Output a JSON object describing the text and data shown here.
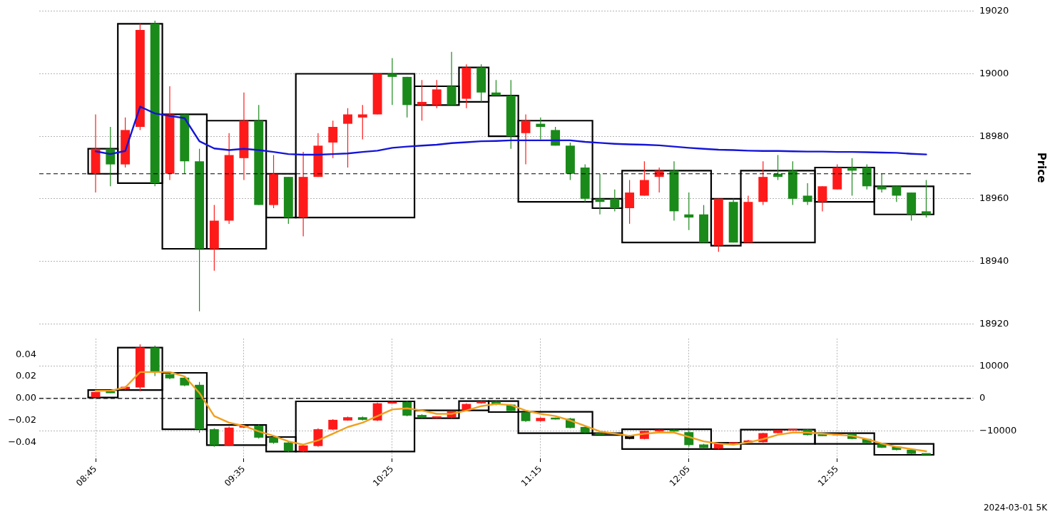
{
  "chart_data": [
    {
      "type": "candlestick",
      "ylabel": "Price",
      "x": [
        "2024-03-01T08:45",
        "2024-03-01T08:50",
        "2024-03-01T08:55",
        "2024-03-01T09:00",
        "2024-03-01T09:05",
        "2024-03-01T09:10",
        "2024-03-01T09:15",
        "2024-03-01T09:20",
        "2024-03-01T09:25",
        "2024-03-01T09:30",
        "2024-03-01T09:35",
        "2024-03-01T09:40",
        "2024-03-01T09:45",
        "2024-03-01T09:50",
        "2024-03-01T09:55",
        "2024-03-01T10:00",
        "2024-03-01T10:05",
        "2024-03-01T10:10",
        "2024-03-01T10:15",
        "2024-03-01T10:20",
        "2024-03-01T10:25",
        "2024-03-01T10:30",
        "2024-03-01T10:35",
        "2024-03-01T10:40",
        "2024-03-01T10:45",
        "2024-03-01T10:50",
        "2024-03-01T10:55",
        "2024-03-01T11:00",
        "2024-03-01T11:05",
        "2024-03-01T11:10",
        "2024-03-01T11:15",
        "2024-03-01T11:20",
        "2024-03-01T11:25",
        "2024-03-01T11:30",
        "2024-03-01T11:35",
        "2024-03-01T11:40",
        "2024-03-01T11:45",
        "2024-03-01T11:50",
        "2024-03-01T11:55",
        "2024-03-01T12:00",
        "2024-03-01T12:05",
        "2024-03-01T12:10",
        "2024-03-01T12:15",
        "2024-03-01T12:20",
        "2024-03-01T12:25",
        "2024-03-01T12:30",
        "2024-03-01T12:35",
        "2024-03-01T12:40",
        "2024-03-01T12:45",
        "2024-03-01T12:50",
        "2024-03-01T12:55",
        "2024-03-01T13:00",
        "2024-03-01T13:05",
        "2024-03-01T13:10",
        "2024-03-01T13:15",
        "2024-03-01T13:20",
        "2024-03-01T13:25"
      ],
      "xlim": [
        "2024-03-01T08:26",
        "2024-03-01T13:41"
      ],
      "xticks": [
        {
          "value": "2024-03-01T08:45",
          "label": null
        },
        {
          "value": "2024-03-01T09:35",
          "label": null
        },
        {
          "value": "2024-03-01T10:25",
          "label": null
        },
        {
          "value": "2024-03-01T11:15",
          "label": null
        },
        {
          "value": "2024-03-01T12:05",
          "label": null
        },
        {
          "value": "2024-03-01T12:55",
          "label": null
        }
      ],
      "ylim": [
        18920,
        19020
      ],
      "yticks": [
        18920,
        18940,
        18960,
        18980,
        19000,
        19020
      ],
      "grid": true,
      "tick_labels": "y",
      "ref_lines": [
        {
          "axis": "y",
          "value": 18968,
          "color": "#000000",
          "line_style": "dashed"
        }
      ],
      "series": [
        {
          "type": "candlestick",
          "ohlc": [
            [
              18968,
              18987,
              18962,
              18976
            ],
            [
              18976,
              18983,
              18964,
              18971
            ],
            [
              18971,
              18986,
              18970,
              18982
            ],
            [
              18983,
              19016,
              18982,
              19014
            ],
            [
              19016,
              19017,
              18964,
              18965
            ],
            [
              18968,
              18996,
              18966,
              18987
            ],
            [
              18987,
              18987,
              18968,
              18972
            ],
            [
              18972,
              18976,
              18924,
              18944
            ],
            [
              18944,
              18958,
              18937,
              18953
            ],
            [
              18953,
              18981,
              18952,
              18974
            ],
            [
              18973,
              18994,
              18966,
              18985
            ],
            [
              18985,
              18990,
              18958,
              18958
            ],
            [
              18958,
              18974,
              18957,
              18968
            ],
            [
              18967,
              18967,
              18952,
              18954
            ],
            [
              18954,
              18975,
              18948,
              18967
            ],
            [
              18967,
              18981,
              18967,
              18977
            ],
            [
              18978,
              18985,
              18973,
              18983
            ],
            [
              18984,
              18989,
              18970,
              18987
            ],
            [
              18986,
              18990,
              18979,
              18987
            ],
            [
              18987,
              19000,
              18987,
              19000
            ],
            [
              19000,
              19005,
              18990,
              18999
            ],
            [
              18999,
              18999,
              18986,
              18990
            ],
            [
              18990,
              18998,
              18985,
              18991
            ],
            [
              18990,
              18998,
              18989,
              18995
            ],
            [
              18996,
              19007,
              18990,
              18990
            ],
            [
              18992,
              19003,
              18989,
              19002
            ],
            [
              19002,
              19003,
              18991,
              18994
            ],
            [
              18994,
              18998,
              18993,
              18993
            ],
            [
              18993,
              18998,
              18976,
              18980
            ],
            [
              18981,
              18987,
              18971,
              18985
            ],
            [
              18984,
              18986,
              18979,
              18983
            ],
            [
              18982,
              18983,
              18977,
              18977
            ],
            [
              18977,
              18978,
              18966,
              18968
            ],
            [
              18970,
              18971,
              18959,
              18960
            ],
            [
              18960,
              18968,
              18955,
              18959
            ],
            [
              18960,
              18963,
              18956,
              18957
            ],
            [
              18957,
              18966,
              18952,
              18962
            ],
            [
              18961,
              18972,
              18961,
              18966
            ],
            [
              18967,
              18970,
              18962,
              18969
            ],
            [
              18969,
              18972,
              18953,
              18956
            ],
            [
              18955,
              18962,
              18950,
              18954
            ],
            [
              18955,
              18958,
              18946,
              18946
            ],
            [
              18945,
              18960,
              18943,
              18960
            ],
            [
              18959,
              18960,
              18946,
              18946
            ],
            [
              18946,
              18961,
              18946,
              18959
            ],
            [
              18959,
              18972,
              18958,
              18967
            ],
            [
              18968,
              18974,
              18966,
              18967
            ],
            [
              18969,
              18972,
              18958,
              18960
            ],
            [
              18961,
              18965,
              18958,
              18959
            ],
            [
              18959,
              18964,
              18956,
              18964
            ],
            [
              18963,
              18971,
              18963,
              18970
            ],
            [
              18970,
              18973,
              18961,
              18969
            ],
            [
              18970,
              18971,
              18963,
              18964
            ],
            [
              18964,
              18968,
              18962,
              18963
            ],
            [
              18964,
              18964,
              18959,
              18961
            ],
            [
              18962,
              18962,
              18953,
              18955
            ],
            [
              18956,
              18966,
              18954,
              18955
            ]
          ],
          "colors": [
            "#ff1a1a",
            "#1a8a1a",
            "#ff1a1a",
            "#ff1a1a",
            "#1a8a1a",
            "#ff1a1a",
            "#1a8a1a",
            "#1a8a1a",
            "#ff1a1a",
            "#ff1a1a",
            "#ff1a1a",
            "#1a8a1a",
            "#ff1a1a",
            "#1a8a1a",
            "#ff1a1a",
            "#ff1a1a",
            "#ff1a1a",
            "#ff1a1a",
            "#ff1a1a",
            "#ff1a1a",
            "#1a8a1a",
            "#1a8a1a",
            "#ff1a1a",
            "#ff1a1a",
            "#1a8a1a",
            "#ff1a1a",
            "#1a8a1a",
            "#1a8a1a",
            "#1a8a1a",
            "#ff1a1a",
            "#1a8a1a",
            "#1a8a1a",
            "#1a8a1a",
            "#1a8a1a",
            "#1a8a1a",
            "#1a8a1a",
            "#ff1a1a",
            "#ff1a1a",
            "#ff1a1a",
            "#1a8a1a",
            "#1a8a1a",
            "#1a8a1a",
            "#ff1a1a",
            "#1a8a1a",
            "#ff1a1a",
            "#ff1a1a",
            "#1a8a1a",
            "#1a8a1a",
            "#1a8a1a",
            "#ff1a1a",
            "#ff1a1a",
            "#1a8a1a",
            "#1a8a1a",
            "#1a8a1a",
            "#1a8a1a",
            "#1a8a1a",
            "#1a8a1a"
          ]
        },
        {
          "type": "line",
          "color": "#1414d8",
          "values": [
            18975.2,
            18974.3,
            18975.3,
            18989.5,
            18987.3,
            18986.5,
            18985.8,
            18978.4,
            18976.1,
            18975.6,
            18976.0,
            18975.6,
            18975.0,
            18974.3,
            18974.1,
            18974.1,
            18974.3,
            18974.5,
            18975.0,
            18975.4,
            18976.3,
            18976.7,
            18977.0,
            18977.3,
            18977.8,
            18978.1,
            18978.4,
            18978.5,
            18978.7,
            18978.7,
            18978.7,
            18978.7,
            18978.7,
            18978.2,
            18977.9,
            18977.6,
            18977.4,
            18977.3,
            18977.1,
            18976.7,
            18976.3,
            18976.0,
            18975.7,
            18975.6,
            18975.4,
            18975.3,
            18975.3,
            18975.2,
            18975.1,
            18975.1,
            18975.0,
            18975.0,
            18974.9,
            18974.8,
            18974.7,
            18974.4,
            18974.2
          ]
        },
        {
          "type": "bar",
          "color": "#000000",
          "x": [
            "2024-03-01T08:47:30",
            "2024-03-01T09:00",
            "2024-03-01T09:15",
            "2024-03-01T09:32:30",
            "2024-03-01T09:47:30",
            "2024-03-01T10:12:30",
            "2024-03-01T10:40",
            "2024-03-01T10:52:30",
            "2024-03-01T11:02:30",
            "2024-03-01T11:20",
            "2024-03-01T11:37:30",
            "2024-03-01T11:57:30",
            "2024-03-01T12:17:30",
            "2024-03-01T12:35",
            "2024-03-01T12:57:30",
            "2024-03-01T13:17:30"
          ],
          "base": [
            18968,
            18965,
            18944,
            18944,
            18954,
            18954,
            18990,
            18991,
            18980,
            18959,
            18957,
            18946,
            18945,
            18946,
            18959,
            18955
          ],
          "values": [
            8,
            51,
            43,
            41,
            14,
            46,
            6,
            11,
            13,
            26,
            3,
            23,
            15,
            23,
            11,
            9
          ]
        }
      ]
    },
    {
      "type": "candlestick",
      "x": [
        "2024-03-01T08:45",
        "2024-03-01T08:50",
        "2024-03-01T08:55",
        "2024-03-01T09:00",
        "2024-03-01T09:05",
        "2024-03-01T09:10",
        "2024-03-01T09:15",
        "2024-03-01T09:20",
        "2024-03-01T09:25",
        "2024-03-01T09:30",
        "2024-03-01T09:35",
        "2024-03-01T09:40",
        "2024-03-01T09:45",
        "2024-03-01T09:50",
        "2024-03-01T09:55",
        "2024-03-01T10:00",
        "2024-03-01T10:05",
        "2024-03-01T10:10",
        "2024-03-01T10:15",
        "2024-03-01T10:20",
        "2024-03-01T10:25",
        "2024-03-01T10:30",
        "2024-03-01T10:35",
        "2024-03-01T10:40",
        "2024-03-01T10:45",
        "2024-03-01T10:50",
        "2024-03-01T10:55",
        "2024-03-01T11:00",
        "2024-03-01T11:05",
        "2024-03-01T11:10",
        "2024-03-01T11:15",
        "2024-03-01T11:20",
        "2024-03-01T11:25",
        "2024-03-01T11:30",
        "2024-03-01T11:35",
        "2024-03-01T11:40",
        "2024-03-01T11:45",
        "2024-03-01T11:50",
        "2024-03-01T11:55",
        "2024-03-01T12:00",
        "2024-03-01T12:05",
        "2024-03-01T12:10",
        "2024-03-01T12:15",
        "2024-03-01T12:20",
        "2024-03-01T12:25",
        "2024-03-01T12:30",
        "2024-03-01T12:35",
        "2024-03-01T12:40",
        "2024-03-01T12:45",
        "2024-03-01T12:50",
        "2024-03-01T12:55",
        "2024-03-01T13:00",
        "2024-03-01T13:05",
        "2024-03-01T13:10",
        "2024-03-01T13:15",
        "2024-03-01T13:20",
        "2024-03-01T13:25"
      ],
      "xlim": [
        "2024-03-01T08:26",
        "2024-03-01T13:41"
      ],
      "xticks": [
        {
          "value": "2024-03-01T08:45",
          "label": "08:45"
        },
        {
          "value": "2024-03-01T09:35",
          "label": "09:35"
        },
        {
          "value": "2024-03-01T10:25",
          "label": "10:25"
        },
        {
          "value": "2024-03-01T11:15",
          "label": "11:15"
        },
        {
          "value": "2024-03-01T12:05",
          "label": "12:05"
        },
        {
          "value": "2024-03-01T12:55",
          "label": "12:55"
        }
      ],
      "ylim": [
        -18500,
        18500
      ],
      "yticks": [
        {
          "value": -10000,
          "label": "−10000"
        },
        0,
        10000
      ],
      "y2lim": [
        -0.0545,
        0.0545
      ],
      "y2ticks": [
        {
          "value": -0.04,
          "label": "−0.04"
        },
        {
          "value": -0.02,
          "label": "−0.02"
        },
        {
          "value": 0,
          "label": "0.00"
        },
        0.02,
        0.04
      ],
      "grid": true,
      "ref_lines": [
        {
          "axis": "y",
          "value": 0,
          "color": "#000000",
          "line_style": "dashed"
        }
      ],
      "annotations": [
        "2024-03-01 5K"
      ],
      "series": [
        {
          "type": "candlestick",
          "ohlc": [
            [
              300,
              2000,
              300,
              2000
            ],
            [
              2000,
              2200,
              1700,
              1800
            ],
            [
              2800,
              3800,
              2600,
              3600
            ],
            [
              3400,
              16700,
              2200,
              15700
            ],
            [
              15700,
              16300,
              6900,
              8200
            ],
            [
              7500,
              7800,
              5900,
              6200
            ],
            [
              6400,
              6600,
              3800,
              4000
            ],
            [
              4200,
              5100,
              -10600,
              -9500
            ],
            [
              -9500,
              -9200,
              -14900,
              -14400
            ],
            [
              -14500,
              -8700,
              -14700,
              -9000
            ],
            [
              -9000,
              -8200,
              -9100,
              -8400
            ],
            [
              -8400,
              -8100,
              -12400,
              -12100
            ],
            [
              -11900,
              -11600,
              -14000,
              -13700
            ],
            [
              -13600,
              -13300,
              -16500,
              -16200
            ],
            [
              -16300,
              -14300,
              -16500,
              -14500
            ],
            [
              -14700,
              -9200,
              -14900,
              -9500
            ],
            [
              -9600,
              -6400,
              -9800,
              -6600
            ],
            [
              -6800,
              -5600,
              -6900,
              -5800
            ],
            [
              -5800,
              -5600,
              -6800,
              -6600
            ],
            [
              -6800,
              -1300,
              -7000,
              -1500
            ],
            [
              -1500,
              -900,
              -1600,
              -1100
            ],
            [
              -1100,
              -800,
              -5500,
              -5300
            ],
            [
              -5100,
              -4900,
              -6100,
              -6000
            ],
            [
              -6000,
              -5500,
              -6100,
              -5600
            ],
            [
              -6000,
              -3800,
              -6100,
              -3900
            ],
            [
              -3700,
              -1500,
              -3800,
              -1700
            ],
            [
              -1500,
              -800,
              -1600,
              -900
            ],
            [
              -900,
              -800,
              -2100,
              -2000
            ],
            [
              -1900,
              -1700,
              -4100,
              -3900
            ],
            [
              -4300,
              -4100,
              -7200,
              -7000
            ],
            [
              -7000,
              -5800,
              -7100,
              -6000
            ],
            [
              -6000,
              -5900,
              -6500,
              -6400
            ],
            [
              -6200,
              -6000,
              -9200,
              -9100
            ],
            [
              -8800,
              -8600,
              -10700,
              -10600
            ],
            [
              -10900,
              -10700,
              -11100,
              -11000
            ],
            null,
            [
              -11500,
              -11300,
              -12600,
              -12500
            ],
            [
              -12500,
              -10000,
              -12600,
              -10000
            ],
            [
              -10200,
              -9600,
              -10300,
              -9600
            ],
            [
              -9600,
              -9500,
              -10300,
              -10200
            ],
            [
              -10400,
              -9900,
              -14900,
              -14400
            ],
            [
              -14200,
              -14000,
              -15500,
              -15300
            ],
            [
              -15500,
              -13800,
              -15700,
              -13900
            ],
            [
              -13900,
              -13600,
              -14000,
              -13700
            ],
            [
              -13500,
              -12800,
              -13600,
              -13000
            ],
            [
              -13500,
              -10600,
              -13600,
              -10700
            ],
            [
              -10700,
              -9700,
              -10800,
              -9800
            ],
            [
              -9800,
              -9400,
              -9900,
              -9500
            ],
            [
              -9600,
              -9500,
              -11400,
              -11300
            ],
            [
              -11300,
              -11200,
              -11500,
              -11400
            ],
            [
              -11400,
              -10800,
              -11500,
              -10900
            ],
            [
              -10900,
              -10800,
              -12600,
              -12500
            ],
            [
              -12500,
              -12400,
              -13800,
              -13700
            ],
            [
              -14100,
              -14000,
              -15300,
              -15200
            ],
            [
              -14900,
              -14800,
              -16000,
              -15900
            ],
            [
              -15800,
              -15600,
              -17200,
              -17100
            ],
            [
              -17100,
              -17000,
              -17300,
              -17200
            ]
          ],
          "colors": [
            "#ff1a1a",
            "#1a8a1a",
            "#ff1a1a",
            "#ff1a1a",
            "#1a8a1a",
            "#1a8a1a",
            "#1a8a1a",
            "#1a8a1a",
            "#1a8a1a",
            "#ff1a1a",
            "#ff1a1a",
            "#1a8a1a",
            "#1a8a1a",
            "#1a8a1a",
            "#ff1a1a",
            "#ff1a1a",
            "#ff1a1a",
            "#ff1a1a",
            "#1a8a1a",
            "#ff1a1a",
            "#ff1a1a",
            "#1a8a1a",
            "#1a8a1a",
            "#ff1a1a",
            "#ff1a1a",
            "#ff1a1a",
            "#ff1a1a",
            "#1a8a1a",
            "#1a8a1a",
            "#1a8a1a",
            "#ff1a1a",
            "#1a8a1a",
            "#1a8a1a",
            "#1a8a1a",
            "#1a8a1a",
            "#1a8a1a",
            null,
            "#ff1a1a",
            "#ff1a1a",
            "#1a8a1a",
            "#1a8a1a",
            "#1a8a1a",
            "#ff1a1a",
            "#ff1a1a",
            "#ff1a1a",
            "#ff1a1a",
            "#ff1a1a",
            "#ff1a1a",
            "#1a8a1a",
            "#1a8a1a",
            "#ff1a1a",
            "#1a8a1a",
            "#1a8a1a",
            "#1a8a1a",
            "#1a8a1a",
            "#1a8a1a",
            "#1a8a1a"
          ]
        },
        {
          "type": "line",
          "color": "#f0a01e",
          "axis": "y2",
          "values": [
            0.007,
            0.007,
            0.01,
            0.024,
            0.024,
            0.024,
            0.02,
            0.005,
            -0.016,
            -0.022,
            -0.025,
            -0.03,
            -0.034,
            -0.039,
            -0.042,
            -0.038,
            -0.032,
            -0.026,
            -0.022,
            -0.016,
            -0.01,
            -0.009,
            -0.011,
            -0.014,
            -0.014,
            -0.011,
            -0.007,
            -0.005,
            -0.006,
            -0.011,
            -0.014,
            -0.016,
            -0.02,
            -0.025,
            -0.03,
            -0.032,
            -0.034,
            -0.032,
            -0.031,
            -0.031,
            -0.035,
            -0.039,
            -0.041,
            -0.042,
            -0.04,
            -0.037,
            -0.033,
            -0.031,
            -0.031,
            -0.032,
            -0.033,
            -0.034,
            -0.037,
            -0.041,
            -0.044,
            -0.046,
            -0.048
          ]
        },
        {
          "type": "bar",
          "color": "#000000",
          "x": [
            "2024-03-01T08:47:30",
            "2024-03-01T09:00",
            "2024-03-01T09:15",
            "2024-03-01T09:32:30",
            "2024-03-01T09:47:30",
            "2024-03-01T10:12:30",
            "2024-03-01T10:40",
            "2024-03-01T10:52:30",
            "2024-03-01T11:02:30",
            "2024-03-01T11:20",
            "2024-03-01T11:37:30",
            "2024-03-01T11:57:30",
            "2024-03-01T12:17:30",
            "2024-03-01T12:35",
            "2024-03-01T12:57:30",
            "2024-03-01T13:17:30"
          ],
          "base": [
            300,
            2600,
            -9500,
            -14400,
            -16400,
            -16400,
            -6100,
            -3700,
            -4200,
            -10700,
            -11300,
            -15600,
            -15600,
            -14000,
            -14000,
            -17400
          ],
          "values": [
            2300,
            13100,
            17400,
            6200,
            4500,
            15500,
            2400,
            2900,
            3400,
            6600,
            600,
            6100,
            1900,
            4400,
            3300,
            3400
          ]
        }
      ]
    }
  ]
}
